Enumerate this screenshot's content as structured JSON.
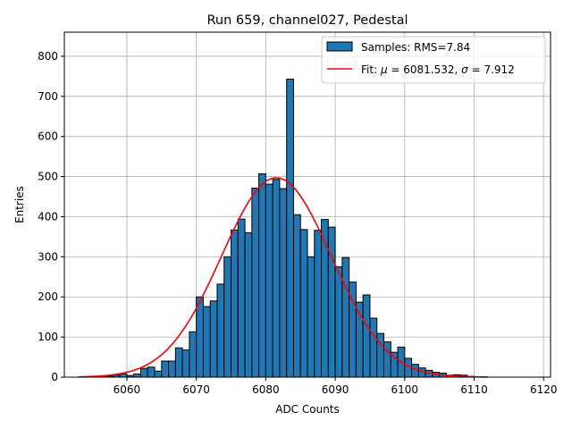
{
  "chart_data": {
    "type": "bar",
    "title": "Run 659, channel027, Pedestal",
    "xlabel": "ADC Counts",
    "ylabel": "Entries",
    "xlim": [
      6051,
      6121
    ],
    "ylim": [
      0,
      860
    ],
    "xticks": [
      6060,
      6070,
      6080,
      6090,
      6100,
      6110,
      6120
    ],
    "yticks": [
      0,
      100,
      200,
      300,
      400,
      500,
      600,
      700,
      800
    ],
    "grid": true,
    "legend_position": "top-right",
    "bar_color": "#1f77b4",
    "fit_color": "#ff0000",
    "bin_width": 1,
    "bins": [
      6056,
      6057,
      6058,
      6059,
      6060,
      6061,
      6062,
      6063,
      6064,
      6065,
      6066,
      6067,
      6068,
      6069,
      6070,
      6071,
      6072,
      6073,
      6074,
      6075,
      6076,
      6077,
      6078,
      6079,
      6080,
      6081,
      6082,
      6083,
      6084,
      6085,
      6086,
      6087,
      6088,
      6089,
      6090,
      6091,
      6092,
      6093,
      6094,
      6095,
      6096,
      6097,
      6098,
      6099,
      6100,
      6101,
      6102,
      6103,
      6104,
      6105,
      6106,
      6107,
      6108,
      6109
    ],
    "counts": [
      1,
      3,
      5,
      8,
      4,
      8,
      22,
      25,
      15,
      40,
      40,
      73,
      68,
      113,
      200,
      176,
      190,
      232,
      300,
      367,
      394,
      360,
      471,
      507,
      481,
      493,
      470,
      743,
      405,
      368,
      300,
      366,
      393,
      374,
      275,
      298,
      237,
      187,
      205,
      147,
      109,
      88,
      62,
      75,
      47,
      32,
      23,
      17,
      12,
      10,
      5,
      6,
      5,
      2
    ],
    "series": [
      {
        "name": "Samples: RMS=7.84",
        "kind": "histogram"
      },
      {
        "name_prefix": "Fit: ",
        "mu_symbol": "μ",
        "mu_text": " = 6081.532, ",
        "sigma_symbol": "σ",
        "sigma_text": " = 7.912",
        "kind": "gaussian",
        "mu": 6081.532,
        "sigma": 7.912,
        "amplitude": 497,
        "x_range": [
          6053,
          6112
        ]
      }
    ]
  }
}
